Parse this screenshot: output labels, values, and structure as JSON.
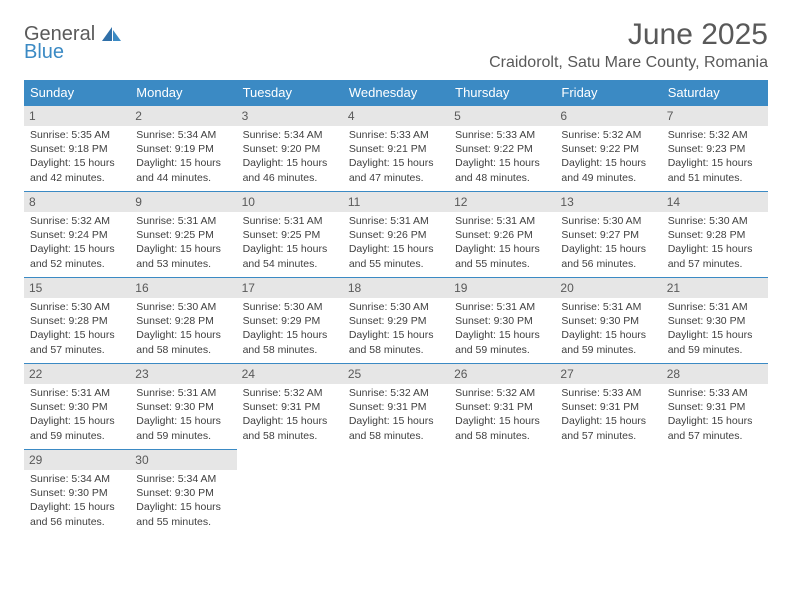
{
  "logo": {
    "line1": "General",
    "line2": "Blue"
  },
  "title": "June 2025",
  "location": "Craidorolt, Satu Mare County, Romania",
  "colors": {
    "header_bg": "#3b8ac4",
    "header_text": "#ffffff",
    "daynum_bg": "#e6e6e6",
    "text": "#595959",
    "border": "#3b8ac4"
  },
  "weekdays": [
    "Sunday",
    "Monday",
    "Tuesday",
    "Wednesday",
    "Thursday",
    "Friday",
    "Saturday"
  ],
  "weeks": [
    [
      {
        "n": "1",
        "sr": "5:35 AM",
        "ss": "9:18 PM",
        "dl": "15 hours and 42 minutes."
      },
      {
        "n": "2",
        "sr": "5:34 AM",
        "ss": "9:19 PM",
        "dl": "15 hours and 44 minutes."
      },
      {
        "n": "3",
        "sr": "5:34 AM",
        "ss": "9:20 PM",
        "dl": "15 hours and 46 minutes."
      },
      {
        "n": "4",
        "sr": "5:33 AM",
        "ss": "9:21 PM",
        "dl": "15 hours and 47 minutes."
      },
      {
        "n": "5",
        "sr": "5:33 AM",
        "ss": "9:22 PM",
        "dl": "15 hours and 48 minutes."
      },
      {
        "n": "6",
        "sr": "5:32 AM",
        "ss": "9:22 PM",
        "dl": "15 hours and 49 minutes."
      },
      {
        "n": "7",
        "sr": "5:32 AM",
        "ss": "9:23 PM",
        "dl": "15 hours and 51 minutes."
      }
    ],
    [
      {
        "n": "8",
        "sr": "5:32 AM",
        "ss": "9:24 PM",
        "dl": "15 hours and 52 minutes."
      },
      {
        "n": "9",
        "sr": "5:31 AM",
        "ss": "9:25 PM",
        "dl": "15 hours and 53 minutes."
      },
      {
        "n": "10",
        "sr": "5:31 AM",
        "ss": "9:25 PM",
        "dl": "15 hours and 54 minutes."
      },
      {
        "n": "11",
        "sr": "5:31 AM",
        "ss": "9:26 PM",
        "dl": "15 hours and 55 minutes."
      },
      {
        "n": "12",
        "sr": "5:31 AM",
        "ss": "9:26 PM",
        "dl": "15 hours and 55 minutes."
      },
      {
        "n": "13",
        "sr": "5:30 AM",
        "ss": "9:27 PM",
        "dl": "15 hours and 56 minutes."
      },
      {
        "n": "14",
        "sr": "5:30 AM",
        "ss": "9:28 PM",
        "dl": "15 hours and 57 minutes."
      }
    ],
    [
      {
        "n": "15",
        "sr": "5:30 AM",
        "ss": "9:28 PM",
        "dl": "15 hours and 57 minutes."
      },
      {
        "n": "16",
        "sr": "5:30 AM",
        "ss": "9:28 PM",
        "dl": "15 hours and 58 minutes."
      },
      {
        "n": "17",
        "sr": "5:30 AM",
        "ss": "9:29 PM",
        "dl": "15 hours and 58 minutes."
      },
      {
        "n": "18",
        "sr": "5:30 AM",
        "ss": "9:29 PM",
        "dl": "15 hours and 58 minutes."
      },
      {
        "n": "19",
        "sr": "5:31 AM",
        "ss": "9:30 PM",
        "dl": "15 hours and 59 minutes."
      },
      {
        "n": "20",
        "sr": "5:31 AM",
        "ss": "9:30 PM",
        "dl": "15 hours and 59 minutes."
      },
      {
        "n": "21",
        "sr": "5:31 AM",
        "ss": "9:30 PM",
        "dl": "15 hours and 59 minutes."
      }
    ],
    [
      {
        "n": "22",
        "sr": "5:31 AM",
        "ss": "9:30 PM",
        "dl": "15 hours and 59 minutes."
      },
      {
        "n": "23",
        "sr": "5:31 AM",
        "ss": "9:30 PM",
        "dl": "15 hours and 59 minutes."
      },
      {
        "n": "24",
        "sr": "5:32 AM",
        "ss": "9:31 PM",
        "dl": "15 hours and 58 minutes."
      },
      {
        "n": "25",
        "sr": "5:32 AM",
        "ss": "9:31 PM",
        "dl": "15 hours and 58 minutes."
      },
      {
        "n": "26",
        "sr": "5:32 AM",
        "ss": "9:31 PM",
        "dl": "15 hours and 58 minutes."
      },
      {
        "n": "27",
        "sr": "5:33 AM",
        "ss": "9:31 PM",
        "dl": "15 hours and 57 minutes."
      },
      {
        "n": "28",
        "sr": "5:33 AM",
        "ss": "9:31 PM",
        "dl": "15 hours and 57 minutes."
      }
    ],
    [
      {
        "n": "29",
        "sr": "5:34 AM",
        "ss": "9:30 PM",
        "dl": "15 hours and 56 minutes."
      },
      {
        "n": "30",
        "sr": "5:34 AM",
        "ss": "9:30 PM",
        "dl": "15 hours and 55 minutes."
      },
      null,
      null,
      null,
      null,
      null
    ]
  ],
  "labels": {
    "sunrise": "Sunrise:",
    "sunset": "Sunset:",
    "daylight": "Daylight:"
  }
}
